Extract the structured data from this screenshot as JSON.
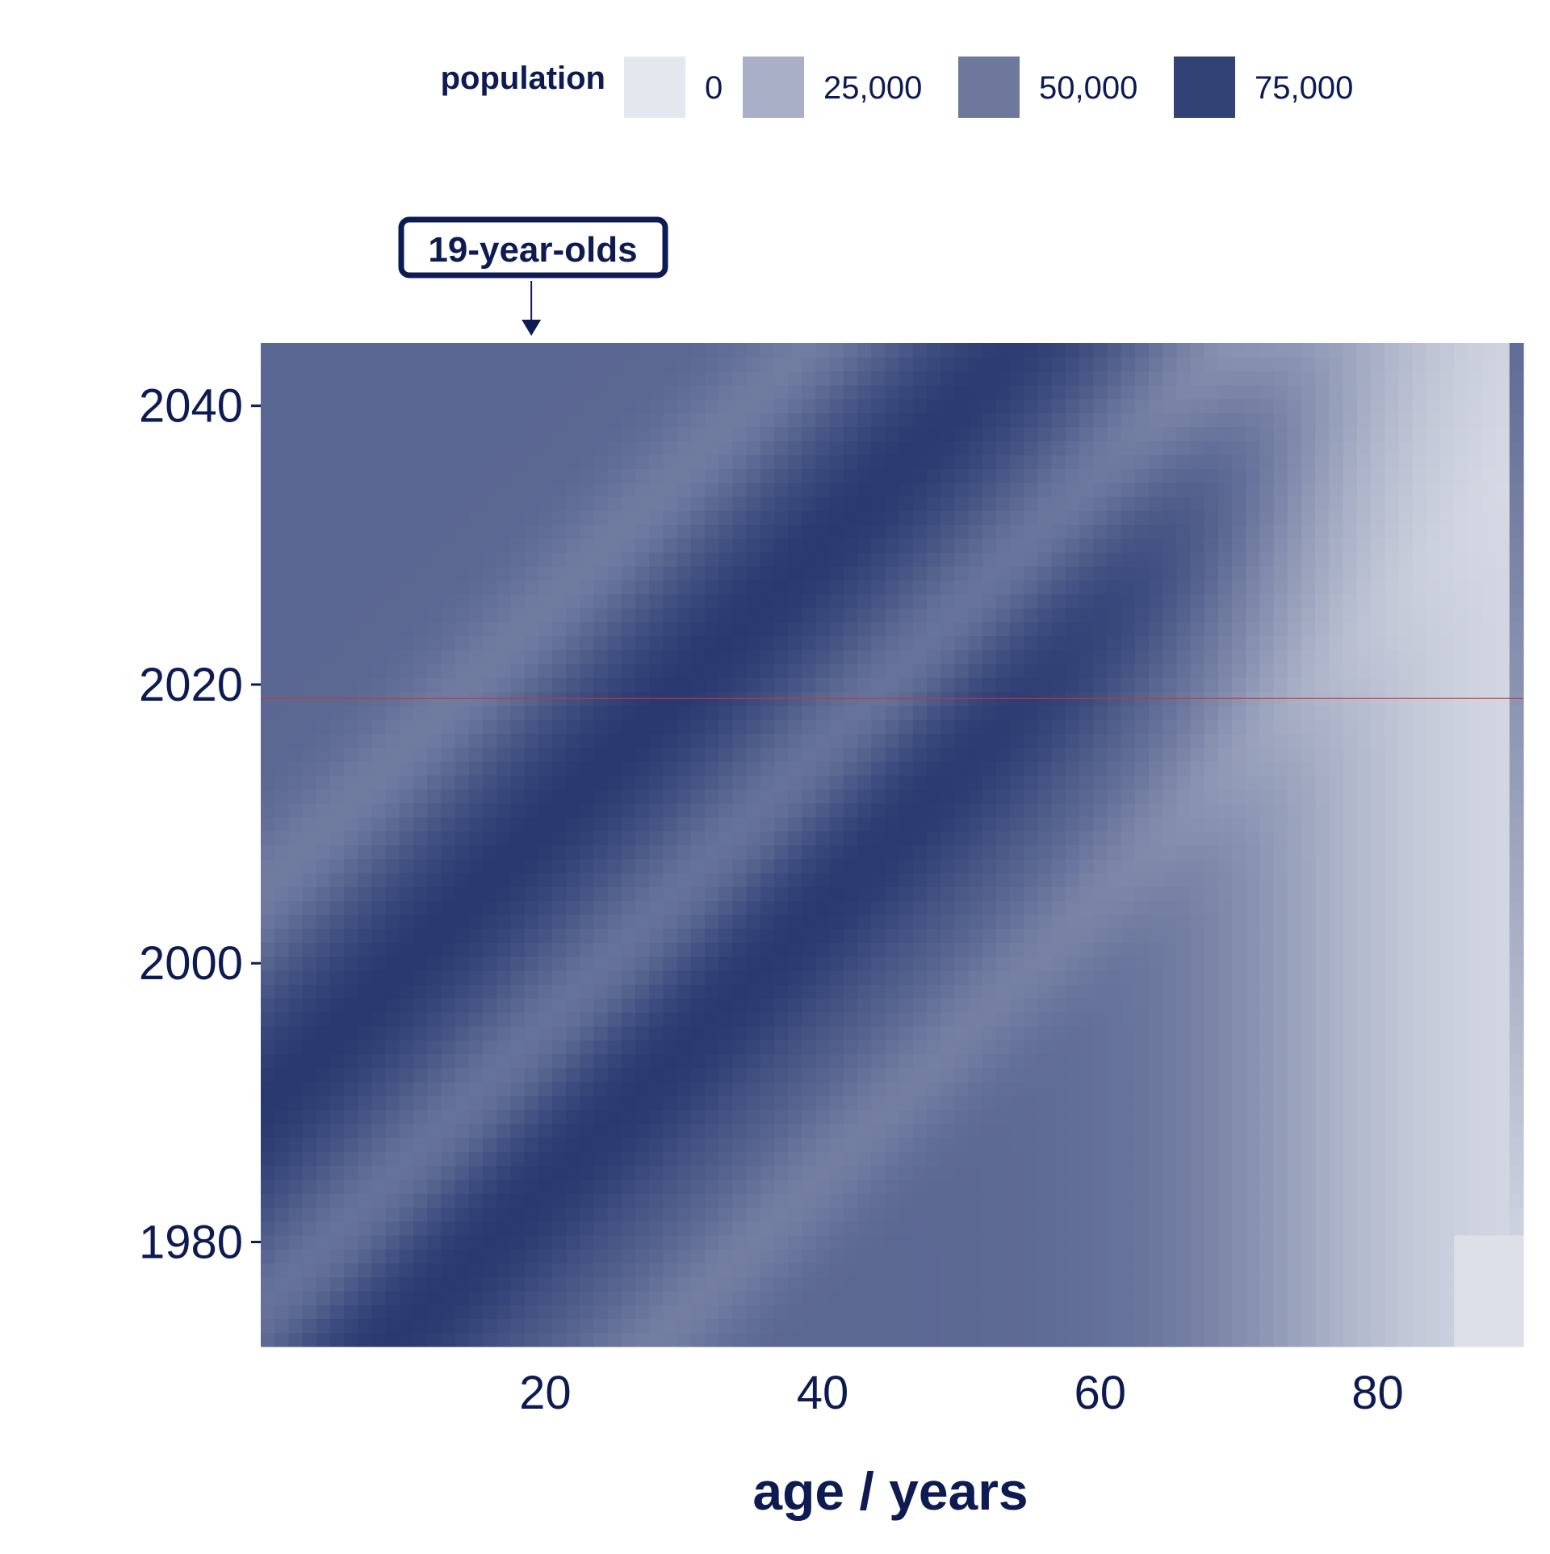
{
  "chart_data": {
    "type": "heatmap",
    "title": "",
    "xlabel": "age / years",
    "ylabel": "",
    "x_range": [
      0,
      90
    ],
    "y_range": [
      1973,
      2044
    ],
    "x_ticks": [
      20,
      40,
      60,
      80
    ],
    "y_ticks": [
      1980,
      2000,
      2020,
      2040
    ],
    "x_tick_labels": [
      "20",
      "40",
      "60",
      "80"
    ],
    "y_tick_labels": [
      "1980",
      "2000",
      "2020",
      "2040"
    ],
    "legend": {
      "title": "population",
      "position": "top",
      "breaks": [
        0,
        25000,
        50000,
        75000
      ],
      "labels": [
        "0",
        "25,000",
        "50,000",
        "75,000"
      ],
      "colors": [
        "#e4e7ee",
        "#a9afc6",
        "#6e789c",
        "#334275"
      ]
    },
    "color_scale": {
      "low": "#e4e7ee",
      "high": "#071a5a",
      "domain": [
        0,
        90000
      ]
    },
    "reference_line": {
      "year": 2019,
      "color": "#cc3333"
    },
    "annotation": {
      "text": "19-year-olds",
      "age": 19
    },
    "model_description": "Population by single year of age (0-90) and year (1973-2044); diagonal cohort bands of high and low population travel up-right, with low values at high ages.",
    "cohort_birth_year_peaks": [
      1964,
      1990
    ],
    "cohort_birth_year_troughs": [
      1945,
      1975,
      2005
    ]
  },
  "colors": {
    "text": "#0d1b52",
    "background": "#ffffff"
  }
}
